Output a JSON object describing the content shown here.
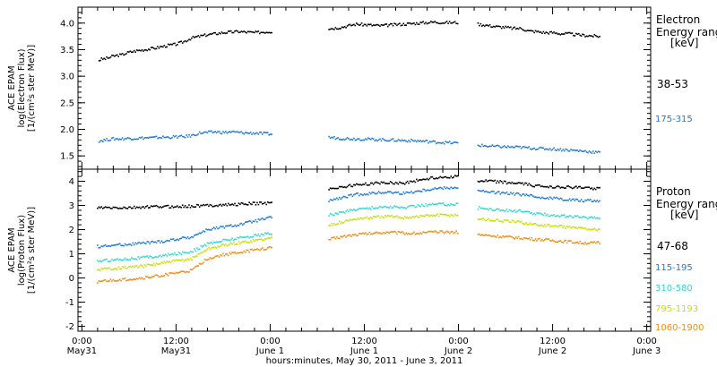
{
  "chart_data": [
    {
      "type": "scatter",
      "panel": "electron",
      "ylabel": [
        "ACE EPAM",
        "log(Electron Flux)",
        "[1/(cm²s ster MeV)]"
      ],
      "ylim": [
        1.25,
        4.3
      ],
      "yticks": [
        1.5,
        2.0,
        2.5,
        3.0,
        3.5,
        4.0
      ],
      "ytick_labels": [
        "1.5",
        "2.0",
        "2.5",
        "3.0",
        "3.5",
        "4.0"
      ],
      "legend_title": [
        "Electron",
        "Energy range",
        "[keV]"
      ],
      "series": [
        {
          "name": "38-53",
          "color": "#000000",
          "segments": [
            {
              "x": [
                2.2,
                2.5,
                3,
                3.5,
                4,
                5,
                6,
                7,
                8,
                9,
                10,
                11,
                12,
                13,
                14,
                15,
                16,
                17,
                18,
                19,
                20,
                21,
                22,
                23,
                24.2
              ],
              "y": [
                3.3,
                3.32,
                3.33,
                3.35,
                3.38,
                3.4,
                3.45,
                3.48,
                3.5,
                3.52,
                3.55,
                3.58,
                3.6,
                3.65,
                3.72,
                3.75,
                3.78,
                3.8,
                3.82,
                3.83,
                3.84,
                3.83,
                3.82,
                3.83,
                3.84
              ]
            },
            {
              "x": [
                31.5,
                32,
                33,
                34,
                35,
                36,
                37,
                38,
                39,
                40,
                41,
                42,
                43,
                44,
                45,
                46,
                47.9
              ],
              "y": [
                3.9,
                3.9,
                3.92,
                3.95,
                3.98,
                3.97,
                3.96,
                3.95,
                3.96,
                3.97,
                3.98,
                3.99,
                4.0,
                4.01,
                4.02,
                4.01,
                4.01
              ]
            },
            {
              "x": [
                50.5,
                51,
                52,
                53,
                54,
                55,
                56,
                57,
                58,
                59,
                60,
                61,
                62,
                63,
                64,
                65,
                66
              ],
              "y": [
                3.98,
                3.97,
                3.95,
                3.93,
                3.92,
                3.9,
                3.9,
                3.85,
                3.84,
                3.82,
                3.82,
                3.8,
                3.8,
                3.78,
                3.77,
                3.76,
                3.75
              ]
            }
          ]
        },
        {
          "name": "175-315",
          "color": "#1f7ad6",
          "segments": [
            {
              "x": [
                2.2,
                3,
                4,
                5,
                6,
                7,
                8,
                9,
                10,
                11,
                12,
                13,
                14,
                15,
                16,
                17,
                18,
                19,
                20,
                21,
                22,
                23,
                24.2
              ],
              "y": [
                1.78,
                1.8,
                1.82,
                1.82,
                1.83,
                1.83,
                1.84,
                1.84,
                1.85,
                1.85,
                1.86,
                1.86,
                1.88,
                1.93,
                1.94,
                1.95,
                1.94,
                1.95,
                1.94,
                1.93,
                1.93,
                1.92,
                1.91
              ]
            },
            {
              "x": [
                31.5,
                33,
                35,
                37,
                39,
                41,
                43,
                45,
                47.9
              ],
              "y": [
                1.85,
                1.83,
                1.82,
                1.81,
                1.8,
                1.79,
                1.78,
                1.76,
                1.74
              ]
            },
            {
              "x": [
                50.5,
                52,
                54,
                56,
                58,
                60,
                62,
                64,
                66
              ],
              "y": [
                1.7,
                1.68,
                1.67,
                1.66,
                1.64,
                1.63,
                1.61,
                1.59,
                1.56
              ]
            }
          ]
        }
      ]
    },
    {
      "type": "scatter",
      "panel": "proton",
      "ylabel": [
        "ACE EPAM",
        "log(Proton Flux)",
        "[1/(cm²s ster MeV)]"
      ],
      "ylim": [
        -2.2,
        4.5
      ],
      "yticks": [
        -2,
        -1,
        0,
        1,
        2,
        3,
        4
      ],
      "ytick_labels": [
        "-2",
        "-1",
        "0",
        "1",
        "2",
        "3",
        "4"
      ],
      "legend_title": [
        "Proton",
        "Energy range",
        "[keV]"
      ],
      "series": [
        {
          "name": "47-68",
          "color": "#000000",
          "segments": [
            {
              "x": [
                2,
                4,
                6,
                8,
                10,
                12,
                14,
                16,
                18,
                20,
                22,
                24.2
              ],
              "y": [
                2.9,
                2.9,
                2.9,
                2.93,
                2.95,
                2.95,
                2.97,
                3.0,
                3.02,
                3.05,
                3.08,
                3.1
              ]
            },
            {
              "x": [
                31.5,
                33,
                35,
                37,
                39,
                41,
                43,
                45,
                47.9
              ],
              "y": [
                3.7,
                3.75,
                3.85,
                3.9,
                3.95,
                3.92,
                4.05,
                4.15,
                4.2
              ]
            },
            {
              "x": [
                50.5,
                52,
                54,
                56,
                58,
                60,
                62,
                64,
                66
              ],
              "y": [
                4.0,
                4.0,
                3.95,
                3.9,
                3.8,
                3.78,
                3.75,
                3.73,
                3.7
              ]
            }
          ]
        },
        {
          "name": "115-195",
          "color": "#1f7ad6",
          "segments": [
            {
              "x": [
                2,
                4,
                6,
                8,
                10,
                12,
                14,
                16,
                18,
                20,
                22,
                24.2
              ],
              "y": [
                1.3,
                1.35,
                1.4,
                1.45,
                1.5,
                1.6,
                1.7,
                2.0,
                2.1,
                2.2,
                2.35,
                2.5
              ]
            },
            {
              "x": [
                31.5,
                33,
                35,
                37,
                39,
                41,
                43,
                45,
                47.9
              ],
              "y": [
                3.2,
                3.3,
                3.45,
                3.5,
                3.55,
                3.5,
                3.6,
                3.7,
                3.75
              ]
            },
            {
              "x": [
                50.5,
                52,
                54,
                56,
                58,
                60,
                62,
                64,
                66
              ],
              "y": [
                3.6,
                3.55,
                3.5,
                3.45,
                3.35,
                3.3,
                3.25,
                3.2,
                3.2
              ]
            }
          ]
        },
        {
          "name": "310-580",
          "color": "#30d8d0",
          "segments": [
            {
              "x": [
                2,
                4,
                6,
                8,
                10,
                12,
                14,
                16,
                18,
                20,
                22,
                24.2
              ],
              "y": [
                0.7,
                0.75,
                0.8,
                0.85,
                0.9,
                1.0,
                1.1,
                1.4,
                1.55,
                1.65,
                1.75,
                1.85
              ]
            },
            {
              "x": [
                31.5,
                33,
                35,
                37,
                39,
                41,
                43,
                45,
                47.9
              ],
              "y": [
                2.6,
                2.7,
                2.85,
                2.9,
                2.95,
                2.9,
                3.0,
                3.05,
                3.05
              ]
            },
            {
              "x": [
                50.5,
                52,
                54,
                56,
                58,
                60,
                62,
                64,
                66
              ],
              "y": [
                2.9,
                2.85,
                2.8,
                2.75,
                2.65,
                2.6,
                2.55,
                2.5,
                2.5
              ]
            }
          ]
        },
        {
          "name": "795-1193",
          "color": "#c8e000",
          "segments": [
            {
              "x": [
                2,
                4,
                6,
                8,
                10,
                12,
                14,
                16,
                18,
                20,
                22,
                24.2
              ],
              "y": [
                0.35,
                0.4,
                0.45,
                0.5,
                0.6,
                0.7,
                0.8,
                1.2,
                1.35,
                1.45,
                1.55,
                1.65
              ]
            },
            {
              "x": [
                31.5,
                33,
                35,
                37,
                39,
                41,
                43,
                45,
                47.9
              ],
              "y": [
                2.2,
                2.3,
                2.45,
                2.5,
                2.55,
                2.5,
                2.55,
                2.6,
                2.6
              ]
            },
            {
              "x": [
                50.5,
                52,
                54,
                56,
                58,
                60,
                62,
                64,
                66
              ],
              "y": [
                2.45,
                2.4,
                2.35,
                2.3,
                2.2,
                2.15,
                2.1,
                2.05,
                2.0
              ]
            }
          ]
        },
        {
          "name": "1060-1900",
          "color": "#f08c14",
          "segments": [
            {
              "x": [
                2,
                4,
                6,
                8,
                10,
                12,
                14,
                16,
                18,
                20,
                22,
                24.2
              ],
              "y": [
                -0.15,
                -0.1,
                -0.05,
                0.0,
                0.1,
                0.2,
                0.3,
                0.8,
                0.95,
                1.05,
                1.15,
                1.25
              ]
            },
            {
              "x": [
                31.5,
                33,
                35,
                37,
                39,
                41,
                43,
                45,
                47.9
              ],
              "y": [
                1.6,
                1.7,
                1.8,
                1.85,
                1.9,
                1.85,
                1.85,
                1.9,
                1.9
              ]
            },
            {
              "x": [
                50.5,
                52,
                54,
                56,
                58,
                60,
                62,
                64,
                66
              ],
              "y": [
                1.8,
                1.75,
                1.7,
                1.65,
                1.6,
                1.55,
                1.5,
                1.45,
                1.45
              ]
            }
          ]
        }
      ]
    }
  ],
  "x_axis": {
    "xlim": [
      -0.5,
      72.5
    ],
    "ticks": [
      {
        "x": 0,
        "l1": "0:00",
        "l2": "May31"
      },
      {
        "x": 12,
        "l1": "12:00",
        "l2": "May31"
      },
      {
        "x": 24,
        "l1": "0:00",
        "l2": "June 1"
      },
      {
        "x": 36,
        "l1": "12:00",
        "l2": "June 1"
      },
      {
        "x": 48,
        "l1": "0:00",
        "l2": "June 2"
      },
      {
        "x": 60,
        "l1": "12:00",
        "l2": "June 2"
      },
      {
        "x": 72,
        "l1": "0:00",
        "l2": "June 3"
      }
    ],
    "xlabel": "hours:minutes, May 30, 2011 - June  3, 2011"
  }
}
